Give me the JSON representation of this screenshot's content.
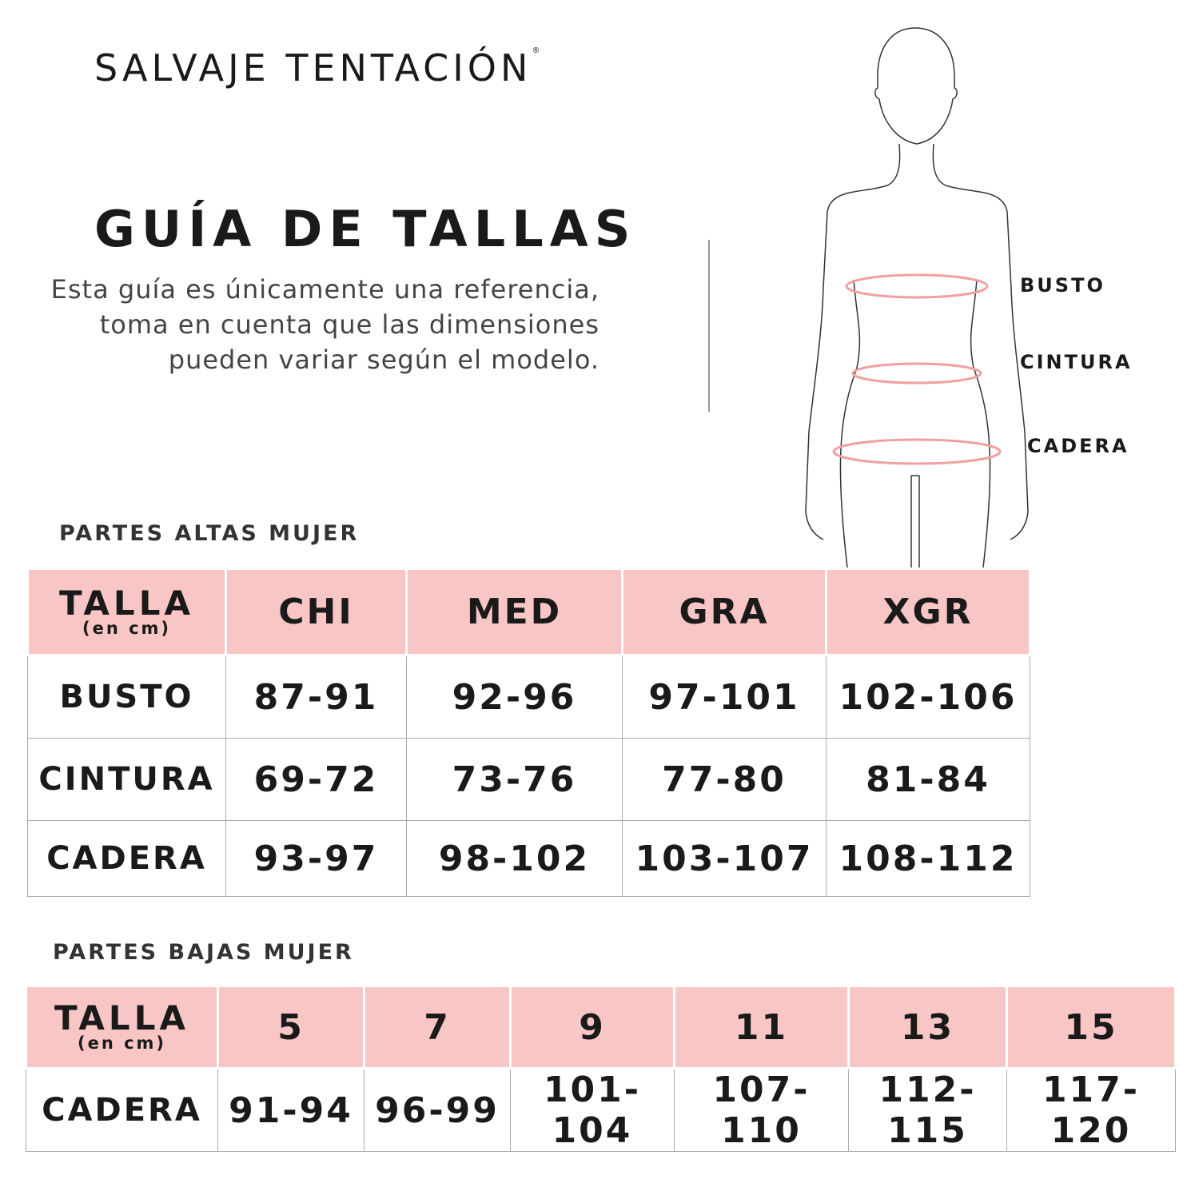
{
  "brand": {
    "name": "SALVAJE TENTACIÓN",
    "registered_mark": "®"
  },
  "title": "GUÍA DE TALLAS",
  "description": "Esta guía es únicamente una referencia, toma en cuenta que las dimensiones pueden variar según el modelo.",
  "figure_labels": {
    "busto": "BUSTO",
    "cintura": "CINTURA",
    "cadera": "CADERA"
  },
  "colors": {
    "header_pink": "#f9c6c6",
    "measure_line": "#f0a0a0"
  },
  "upper_table": {
    "section_title": "PARTES ALTAS MUJER",
    "header": {
      "talla": "TALLA",
      "unit": "(en cm)",
      "sizes": [
        "CHI",
        "MED",
        "GRA",
        "XGR"
      ]
    },
    "rows": [
      {
        "label": "BUSTO",
        "values": [
          "87-91",
          "92-96",
          "97-101",
          "102-106"
        ]
      },
      {
        "label": "CINTURA",
        "values": [
          "69-72",
          "73-76",
          "77-80",
          "81-84"
        ]
      },
      {
        "label": "CADERA",
        "values": [
          "93-97",
          "98-102",
          "103-107",
          "108-112"
        ]
      }
    ]
  },
  "lower_table": {
    "section_title": "PARTES BAJAS MUJER",
    "header": {
      "talla": "TALLA",
      "unit": "(en cm)",
      "sizes": [
        "5",
        "7",
        "9",
        "11",
        "13",
        "15"
      ]
    },
    "rows": [
      {
        "label": "CADERA",
        "values": [
          "91-94",
          "96-99",
          "101-104",
          "107-110",
          "112-115",
          "117-120"
        ]
      }
    ]
  }
}
